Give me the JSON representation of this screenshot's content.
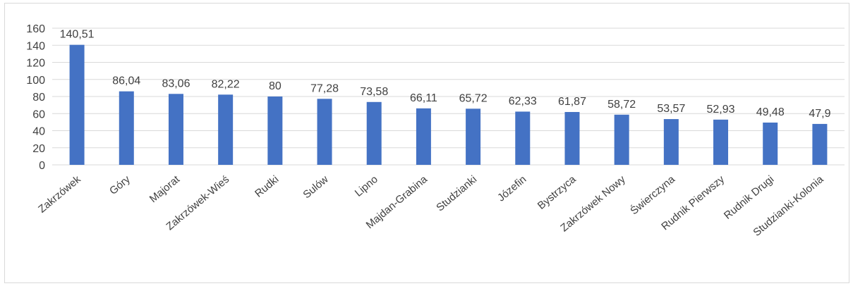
{
  "chart_data": {
    "type": "bar",
    "categories": [
      "Zakrzówek",
      "Góry",
      "Majorat",
      "Zakrzówek-Wieś",
      "Rudki",
      "Sulów",
      "Lipno",
      "Majdan-Grabina",
      "Studzianki",
      "Józefin",
      "Bystrzyca",
      "Zakrzówek Nowy",
      "Świerczyna",
      "Rudnik Pierwszy",
      "Rudnik Drugi",
      "Studzianki-Kolonia"
    ],
    "values": [
      140.51,
      86.04,
      83.06,
      82.22,
      80,
      77.28,
      73.58,
      66.11,
      65.72,
      62.33,
      61.87,
      58.72,
      53.57,
      52.93,
      49.48,
      47.9
    ],
    "data_labels": [
      "140,51",
      "86,04",
      "83,06",
      "82,22",
      "80",
      "77,28",
      "73,58",
      "66,11",
      "65,72",
      "62,33",
      "61,87",
      "58,72",
      "53,57",
      "52,93",
      "49,48",
      "47,9"
    ],
    "ylim": [
      0,
      160
    ],
    "yticks": [
      "0",
      "20",
      "40",
      "60",
      "80",
      "100",
      "120",
      "140",
      "160"
    ],
    "grid": true,
    "bar_color": "#4472c4",
    "legend": "none"
  }
}
